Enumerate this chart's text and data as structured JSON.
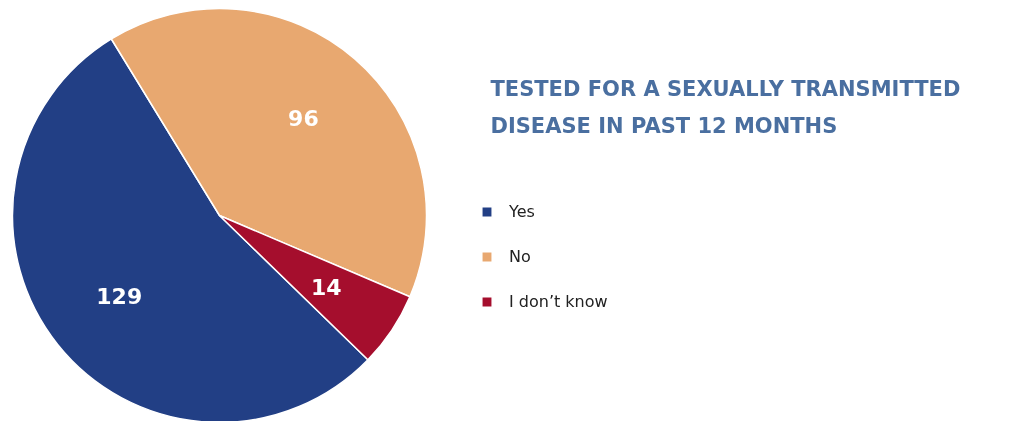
{
  "chart_data": {
    "type": "pie",
    "title": "TESTED FOR A SEXUALLY TRANSMITTED DISEASE IN PAST 12 MONTHS",
    "categories": [
      "Yes",
      "No",
      "I don’t know"
    ],
    "values": [
      129,
      96,
      14
    ],
    "colors": [
      "#223f85",
      "#e8a870",
      "#a50e2d"
    ],
    "data_labels": true,
    "legend": "right"
  }
}
